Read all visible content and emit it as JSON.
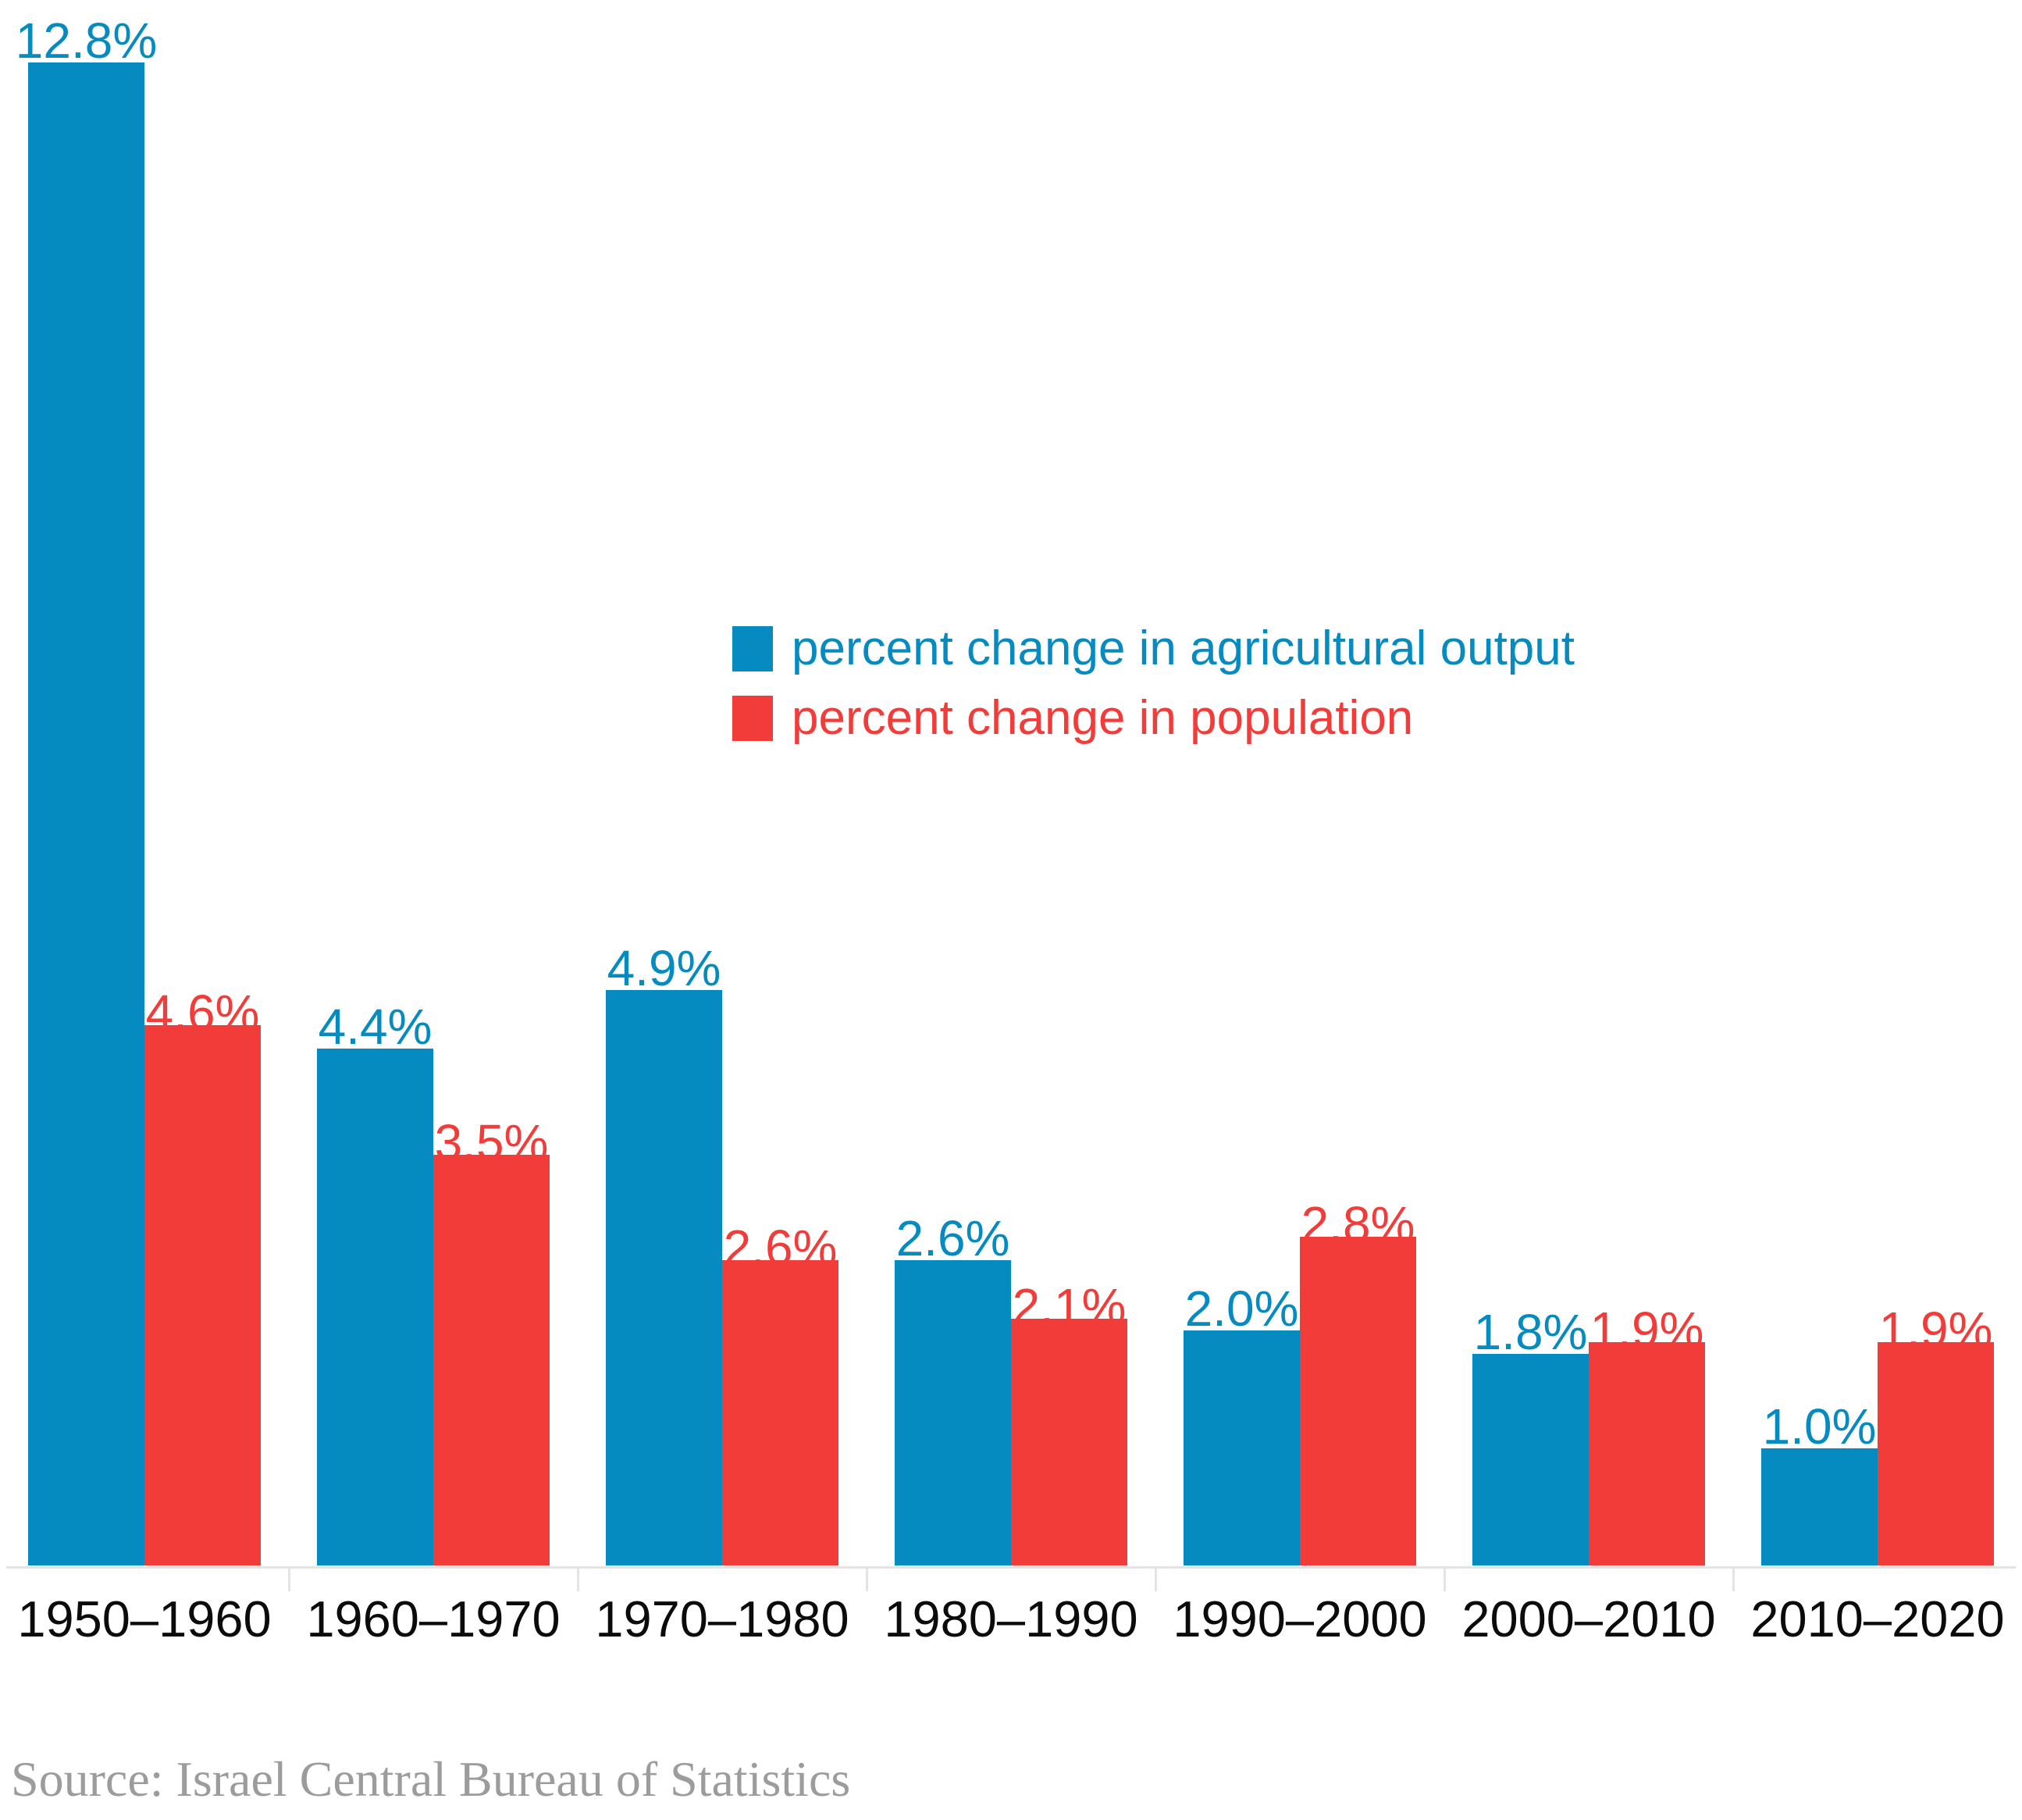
{
  "chart_data": {
    "type": "bar",
    "categories": [
      "1950–1960",
      "1960–1970",
      "1970–1980",
      "1980–1990",
      "1990–2000",
      "2000–2010",
      "2010–2020"
    ],
    "series": [
      {
        "name": "percent change in agricultural output",
        "color": "#068bc0",
        "values": [
          12.8,
          4.4,
          4.9,
          2.6,
          2.0,
          1.8,
          1.0
        ],
        "labels": [
          "12.8%",
          "4.4%",
          "4.9%",
          "2.6%",
          "2.0%",
          "1.8%",
          "1.0%"
        ]
      },
      {
        "name": "percent change in population",
        "color": "#f23c3a",
        "values": [
          4.6,
          3.5,
          2.6,
          2.1,
          2.8,
          1.9,
          1.9
        ],
        "labels": [
          "4.6%",
          "3.5%",
          "2.6%",
          "2.1%",
          "2.8%",
          "1.9%",
          "1.9%"
        ]
      }
    ],
    "title": "",
    "xlabel": "",
    "ylabel": "",
    "ylim": [
      0,
      13.3
    ],
    "grid": false,
    "axis_color": "#e4e4e4",
    "x_tick_label_color": "#0b0b0b",
    "legend_position": "upper-middle",
    "value_labels": true
  },
  "source": {
    "text": "Source: Israel Central Bureau of Statistics",
    "color": "#9c9c9c"
  }
}
